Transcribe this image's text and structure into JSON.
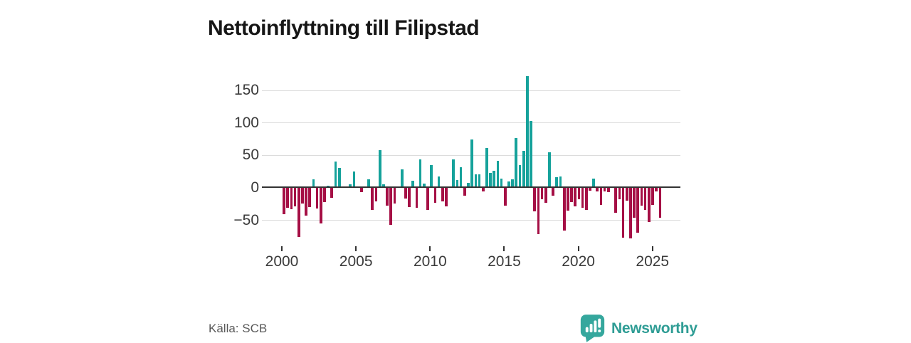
{
  "header": {
    "title": "Nettoinflyttning till Filipstad"
  },
  "footer": {
    "source": "Källa: SCB",
    "brand": "Newsworthy",
    "logo_icon": "bar-chart-speech-bubble-icon"
  },
  "colors": {
    "positive_bar": "#16a29b",
    "negative_bar": "#a50f45",
    "gridline": "#dcdcdc",
    "zero_axis": "#333333",
    "axis_label": "#3a3a3a",
    "title": "#161616",
    "source_text": "#595959",
    "brand": "#2f9d95",
    "logo": "#35a79d"
  },
  "chart_data": {
    "type": "bar",
    "title": "Nettoinflyttning till Filipstad",
    "xlabel": "",
    "ylabel": "",
    "frequency": "quarterly",
    "grid": true,
    "legend": "none",
    "ylim": [
      -85,
      185
    ],
    "yticks": [
      {
        "value": 150,
        "label": "150"
      },
      {
        "value": 100,
        "label": "100"
      },
      {
        "value": 50,
        "label": "50"
      },
      {
        "value": 0,
        "label": "0"
      },
      {
        "value": -50,
        "label": "−50"
      }
    ],
    "xticks": [
      {
        "value": 2000,
        "label": "2000"
      },
      {
        "value": 2005,
        "label": "2005"
      },
      {
        "value": 2010,
        "label": "2010"
      },
      {
        "value": 2015,
        "label": "2015"
      },
      {
        "value": 2020,
        "label": "2020"
      },
      {
        "value": 2025,
        "label": "2025"
      }
    ],
    "series": [
      {
        "name": "Nettoinflyttning",
        "quarters": [
          "2000Q1",
          "2000Q2",
          "2000Q3",
          "2000Q4",
          "2001Q1",
          "2001Q2",
          "2001Q3",
          "2001Q4",
          "2002Q1",
          "2002Q2",
          "2002Q3",
          "2002Q4",
          "2003Q1",
          "2003Q2",
          "2003Q3",
          "2003Q4",
          "2004Q1",
          "2004Q2",
          "2004Q3",
          "2004Q4",
          "2005Q1",
          "2005Q2",
          "2005Q3",
          "2005Q4",
          "2006Q1",
          "2006Q2",
          "2006Q3",
          "2006Q4",
          "2007Q1",
          "2007Q2",
          "2007Q3",
          "2007Q4",
          "2008Q1",
          "2008Q2",
          "2008Q3",
          "2008Q4",
          "2009Q1",
          "2009Q2",
          "2009Q3",
          "2009Q4",
          "2010Q1",
          "2010Q2",
          "2010Q3",
          "2010Q4",
          "2011Q1",
          "2011Q2",
          "2011Q3",
          "2011Q4",
          "2012Q1",
          "2012Q2",
          "2012Q3",
          "2012Q4",
          "2013Q1",
          "2013Q2",
          "2013Q3",
          "2013Q4",
          "2014Q1",
          "2014Q2",
          "2014Q3",
          "2014Q4",
          "2015Q1",
          "2015Q2",
          "2015Q3",
          "2015Q4",
          "2016Q1",
          "2016Q2",
          "2016Q3",
          "2016Q4",
          "2017Q1",
          "2017Q2",
          "2017Q3",
          "2017Q4",
          "2018Q1",
          "2018Q2",
          "2018Q3",
          "2018Q4",
          "2019Q1",
          "2019Q2",
          "2019Q3",
          "2019Q4",
          "2020Q1",
          "2020Q2",
          "2020Q3",
          "2020Q4",
          "2021Q1",
          "2021Q2",
          "2021Q3",
          "2021Q4",
          "2022Q1",
          "2022Q2",
          "2022Q3",
          "2022Q4",
          "2023Q1",
          "2023Q2",
          "2023Q3",
          "2023Q4",
          "2024Q1",
          "2024Q2",
          "2024Q3",
          "2024Q4",
          "2025Q1",
          "2025Q2",
          "2025Q3"
        ],
        "values": [
          -41,
          -31,
          -33,
          -29,
          -76,
          -24,
          -43,
          -30,
          13,
          -32,
          -55,
          -22,
          3,
          -15,
          40,
          31,
          0,
          0,
          5,
          25,
          0,
          -7,
          0,
          13,
          -34,
          -21,
          58,
          5,
          -27,
          -57,
          -24,
          0,
          29,
          -16,
          -30,
          11,
          -31,
          44,
          7,
          -34,
          35,
          -23,
          18,
          -21,
          -28,
          0,
          44,
          12,
          32,
          -12,
          8,
          74,
          21,
          21,
          -6,
          61,
          23,
          26,
          42,
          14,
          -27,
          10,
          13,
          77,
          35,
          57,
          172,
          103,
          -36,
          -71,
          -18,
          -23,
          55,
          -12,
          16,
          18,
          -66,
          -35,
          -22,
          -29,
          -17,
          -31,
          -34,
          -4,
          14,
          -6,
          -26,
          -5,
          -7,
          0,
          -38,
          -17,
          -77,
          -20,
          -78,
          -46,
          -69,
          -27,
          -34,
          -53,
          -26,
          -6,
          -46
        ]
      }
    ]
  }
}
